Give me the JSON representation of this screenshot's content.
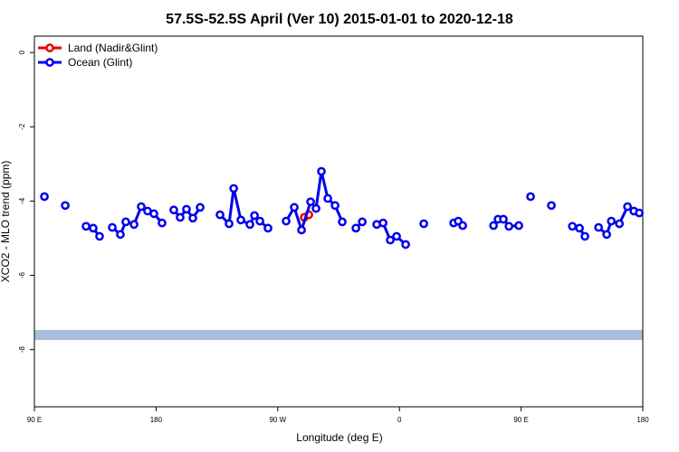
{
  "chart_data": {
    "type": "line",
    "title": "57.5S-52.5S April (Ver 10)   2015-01-01 to 2020-12-18",
    "x_label": "Longitude (deg E)",
    "y_label": "XCO2 - MLO trend (ppm)",
    "xlim": [
      90,
      540
    ],
    "ylim": [
      -9.54,
      0.44
    ],
    "xticks": [
      {
        "value": 90,
        "label": "90 E"
      },
      180,
      {
        "value": 270,
        "label": "90 W"
      },
      {
        "value": 360,
        "label": "0"
      },
      {
        "value": 450,
        "label": "90 E"
      },
      {
        "value": 540,
        "label": "180"
      }
    ],
    "yticks": [
      0,
      -2,
      -4,
      -6,
      -8
    ],
    "legend": "top-left",
    "series": [
      {
        "name": "Land (Nadir&Glint)",
        "color": "#ee0000",
        "x": [
          289.6,
          293.0
        ],
        "values": [
          -4.44,
          -4.37
        ]
      },
      {
        "name": "Ocean (Glint)",
        "color": "#0000ee",
        "x": [
          97.4,
          null,
          112.8,
          null,
          128.2,
          133.5,
          138.2,
          null,
          147.6,
          153.6,
          157.6,
          163.7,
          169.0,
          173.7,
          178.4,
          184.4,
          null,
          193.1,
          197.8,
          202.5,
          207.2,
          212.6,
          null,
          227.3,
          234.0,
          237.4,
          242.7,
          249.4,
          252.8,
          256.8,
          262.8,
          null,
          276.2,
          282.2,
          287.6,
          294.3,
          298.3,
          302.3,
          307.0,
          312.4,
          317.7,
          null,
          327.8,
          332.5,
          null,
          343.2,
          347.9,
          353.2,
          357.9,
          364.6,
          null,
          378.0,
          null,
          400.1,
          403.5,
          406.8,
          null,
          429.6,
          432.9,
          436.9,
          441.0,
          448.3,
          null,
          457.0,
          null,
          472.4,
          null,
          487.9,
          493.2,
          497.2,
          null,
          507.3,
          513.3,
          516.7,
          522.7,
          528.7,
          533.4,
          537.4
        ],
        "values": [
          -3.88,
          null,
          -4.12,
          null,
          -4.68,
          -4.73,
          -4.95,
          null,
          -4.71,
          -4.9,
          -4.56,
          -4.63,
          -4.15,
          -4.27,
          -4.34,
          -4.59,
          null,
          -4.24,
          -4.44,
          -4.22,
          -4.46,
          -4.17,
          null,
          -4.37,
          -4.61,
          -3.66,
          -4.51,
          -4.63,
          -4.39,
          -4.54,
          -4.73,
          null,
          -4.54,
          -4.17,
          -4.78,
          -4.02,
          -4.2,
          -3.2,
          -3.93,
          -4.12,
          -4.56,
          null,
          -4.73,
          -4.56,
          null,
          -4.63,
          -4.59,
          -5.05,
          -4.95,
          -5.17,
          null,
          -4.61,
          null,
          -4.59,
          -4.54,
          -4.66,
          null,
          -4.66,
          -4.49,
          -4.49,
          -4.68,
          -4.66,
          null,
          -3.88,
          null,
          -4.12,
          null,
          -4.68,
          -4.73,
          -4.95,
          null,
          -4.71,
          -4.9,
          -4.54,
          -4.61,
          -4.15,
          -4.27,
          -4.32
        ]
      }
    ]
  }
}
